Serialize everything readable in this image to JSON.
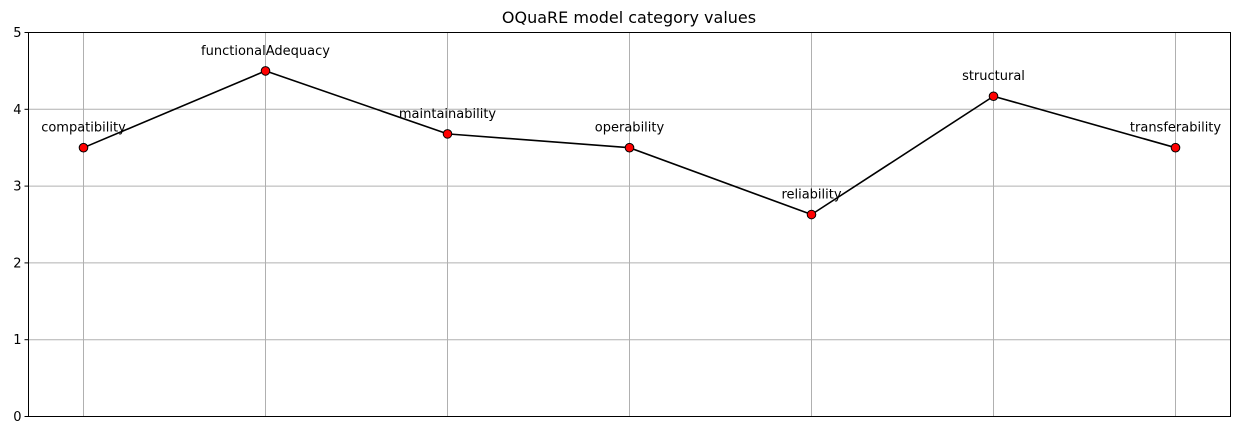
{
  "chart_data": {
    "type": "line",
    "title": "OQuaRE model category values",
    "xlabel": "",
    "ylabel": "",
    "ylim": [
      0,
      5
    ],
    "yticks": [
      "0",
      "1",
      "2",
      "3",
      "4",
      "5"
    ],
    "grid": true,
    "line_color": "#000000",
    "marker_color": "#ff0000",
    "marker_edge_color": "#000000",
    "categories": [
      "compatibility",
      "functionalAdequacy",
      "maintainability",
      "operability",
      "reliability",
      "structural",
      "transferability"
    ],
    "values": [
      3.5,
      4.5,
      3.68,
      3.5,
      2.63,
      4.17,
      3.5
    ]
  }
}
